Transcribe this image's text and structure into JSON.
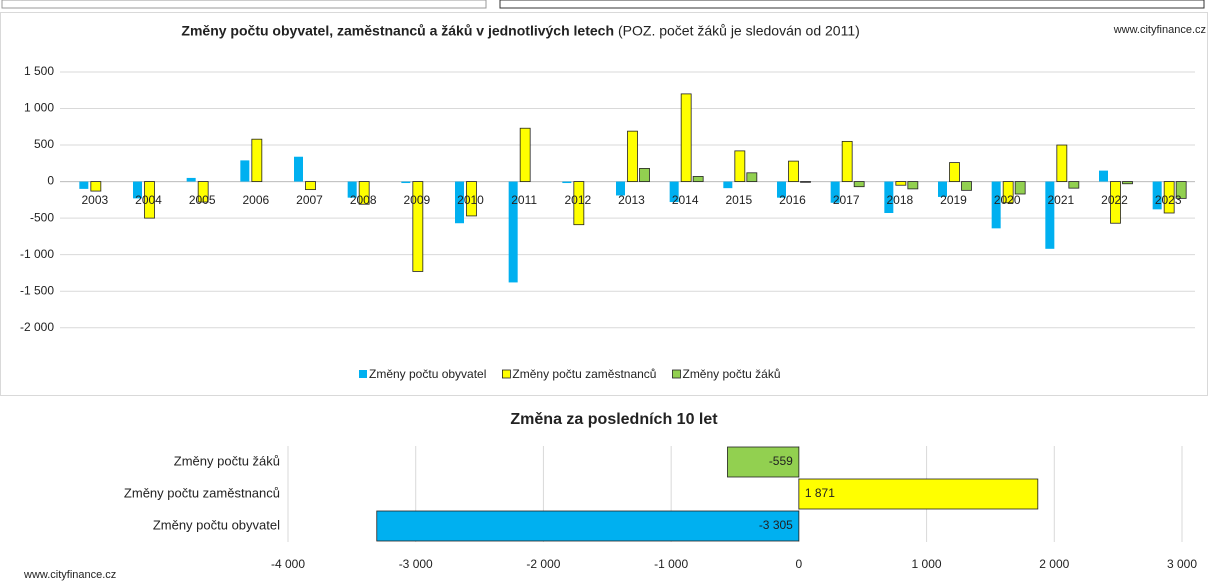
{
  "chart_data": [
    {
      "type": "bar",
      "title": "Změny počtu obyvatel, zaměstnanců a žáků v jednotlivých letech",
      "subtitle": "(POZ. počet žáků je sledován od 2011)",
      "source": "www.cityfinance.cz",
      "categories": [
        "2003",
        "2004",
        "2005",
        "2006",
        "2007",
        "2008",
        "2009",
        "2010",
        "2011",
        "2012",
        "2013",
        "2014",
        "2015",
        "2016",
        "2017",
        "2018",
        "2019",
        "2020",
        "2021",
        "2022",
        "2023"
      ],
      "series": [
        {
          "name": "Změny počtu obyvatel",
          "color": "#00b0f0",
          "values": [
            -100,
            -230,
            50,
            290,
            340,
            -220,
            -20,
            -570,
            -1380,
            -20,
            -190,
            -280,
            -90,
            -220,
            -290,
            -430,
            -210,
            -640,
            -920,
            150,
            -380
          ]
        },
        {
          "name": "Změny počtu zaměstnanců",
          "color": "#ffff00",
          "values": [
            -130,
            -500,
            -280,
            580,
            -110,
            -310,
            -1230,
            -470,
            730,
            -590,
            690,
            1200,
            420,
            280,
            550,
            -50,
            260,
            -290,
            500,
            -570,
            -430
          ]
        },
        {
          "name": "Změny počtu žáků",
          "color": "#92d050",
          "values": [
            null,
            null,
            null,
            null,
            null,
            null,
            null,
            null,
            null,
            0,
            180,
            70,
            120,
            -10,
            -70,
            -100,
            -120,
            -170,
            -90,
            -30,
            -230
          ]
        }
      ],
      "ylim": [
        -2250,
        1650
      ],
      "yticks": [
        {
          "value": 1500,
          "label": "1 500"
        },
        {
          "value": 1000,
          "label": "1 000"
        },
        500,
        0,
        -500,
        {
          "value": -1000,
          "label": "-1 000"
        },
        {
          "value": -1500,
          "label": "-1 500"
        },
        {
          "value": -2000,
          "label": "-2 000"
        }
      ],
      "grid": true,
      "legend": "bottom"
    },
    {
      "type": "hbar",
      "title": "Změna za posledních 10 let",
      "source": "www.cityfinance.cz",
      "categories": [
        "Změny počtu žáků",
        "Změny počtu zaměstnanců",
        "Změny počtu obyvatel"
      ],
      "values": [
        -559,
        1871,
        -3305
      ],
      "value_labels": [
        "-559",
        "1 871",
        "-3 305"
      ],
      "colors": [
        "#92d050",
        "#ffff00",
        "#00b0f0"
      ],
      "xlim": [
        -4000,
        3000
      ],
      "xticks": [
        {
          "value": -4000,
          "label": "-4 000"
        },
        {
          "value": -3000,
          "label": "-3 000"
        },
        {
          "value": -2000,
          "label": "-2 000"
        },
        {
          "value": -1000,
          "label": "-1 000"
        },
        0,
        {
          "value": 1000,
          "label": "1 000"
        },
        {
          "value": 2000,
          "label": "2 000"
        },
        {
          "value": 3000,
          "label": "3 000"
        }
      ],
      "grid": true
    }
  ]
}
